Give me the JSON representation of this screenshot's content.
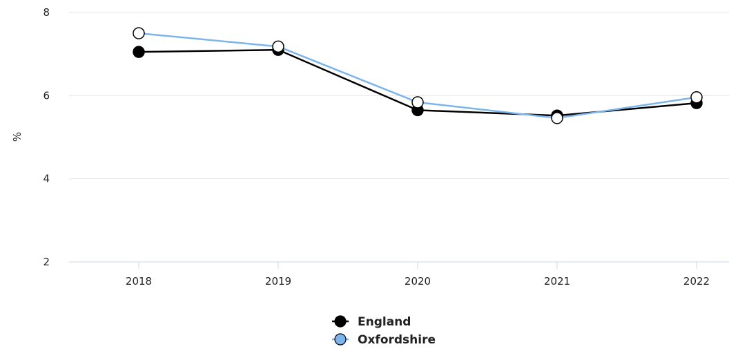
{
  "chart_data": {
    "type": "line",
    "title": "",
    "xlabel": "",
    "ylabel": "%",
    "categories": [
      "2018",
      "2019",
      "2020",
      "2021",
      "2022"
    ],
    "ylim": [
      2,
      8
    ],
    "yticks": [
      "2",
      "4",
      "6",
      "8"
    ],
    "grid": true,
    "legend_position": "bottom-center",
    "series": [
      {
        "name": "England",
        "values": [
          7.05,
          7.1,
          5.65,
          5.52,
          5.82
        ],
        "line_color": "#000000",
        "marker_fill": "#000000",
        "legend_marker_fill": "#000000"
      },
      {
        "name": "Oxfordshire",
        "values": [
          7.5,
          7.18,
          5.84,
          5.46,
          5.96
        ],
        "line_color": "#7cb5ec",
        "marker_fill": "#ffffff",
        "legend_marker_fill": "#7cb5ec"
      }
    ]
  }
}
